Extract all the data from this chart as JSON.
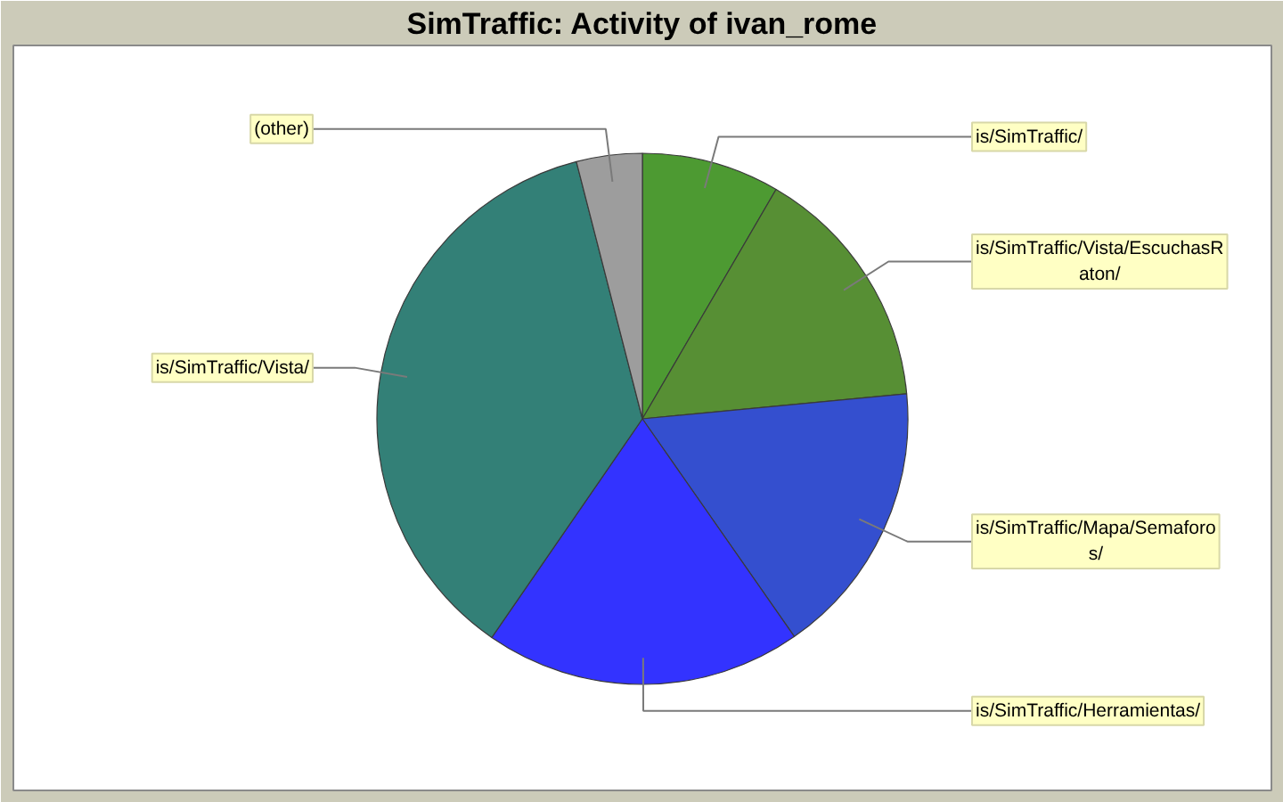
{
  "chart_data": {
    "type": "pie",
    "title": "SimTraffic: Activity of ivan_rome",
    "categories": [
      "is/SimTraffic/",
      "is/SimTraffic/Vista/EscuchasR\naton/",
      "is/SimTraffic/Mapa/Semaforo\ns/",
      "is/SimTraffic/Herramientas/",
      "is/SimTraffic/Vista/",
      "(other)"
    ],
    "values": [
      8.4,
      15.1,
      16.8,
      19.3,
      36.4,
      4.0
    ],
    "colors": [
      "#4d9a32",
      "#578f34",
      "#344fcf",
      "#3333ff",
      "#338077",
      "#9d9d9d"
    ]
  }
}
